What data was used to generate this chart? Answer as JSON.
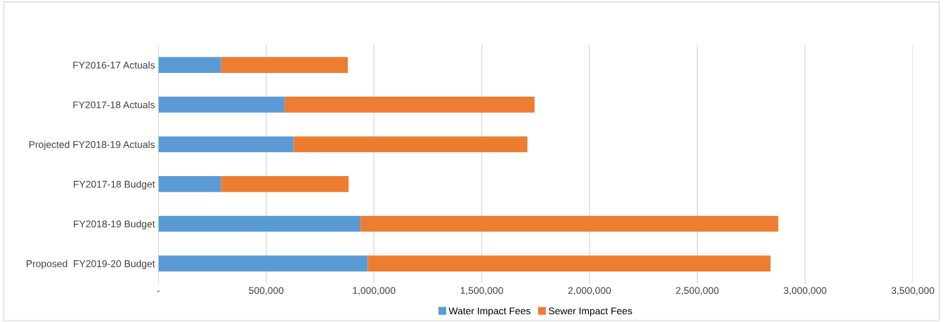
{
  "chart_data": {
    "type": "bar",
    "orientation": "horizontal",
    "stacked": true,
    "categories": [
      "FY2016-17 Actuals",
      "FY2017-18 Actuals",
      "Projected FY2018-19 Actuals",
      "FY2017-18 Budget",
      "FY2018-19 Budget",
      "Proposed  FY2019-20 Budget"
    ],
    "series": [
      {
        "name": "Water Impact Fees",
        "color": "#5b9bd5",
        "values": [
          291000,
          585000,
          627000,
          291000,
          938000,
          971000
        ]
      },
      {
        "name": "Sewer Impact Fees",
        "color": "#ed7d31",
        "values": [
          588000,
          1160000,
          1085000,
          591000,
          1938000,
          1869000
        ]
      }
    ],
    "xlim": [
      0,
      3500000
    ],
    "xticks": [
      {
        "value": 0,
        "label": "-"
      },
      {
        "value": 500000,
        "label": "500,000"
      },
      {
        "value": 1000000,
        "label": "1,000,000"
      },
      {
        "value": 1500000,
        "label": "1,500,000"
      },
      {
        "value": 2000000,
        "label": "2,000,000"
      },
      {
        "value": 2500000,
        "label": "2,500,000"
      },
      {
        "value": 3000000,
        "label": "3,000,000"
      },
      {
        "value": 3500000,
        "label": "3,500,000"
      }
    ],
    "grid": "x",
    "legend": "bottom"
  }
}
